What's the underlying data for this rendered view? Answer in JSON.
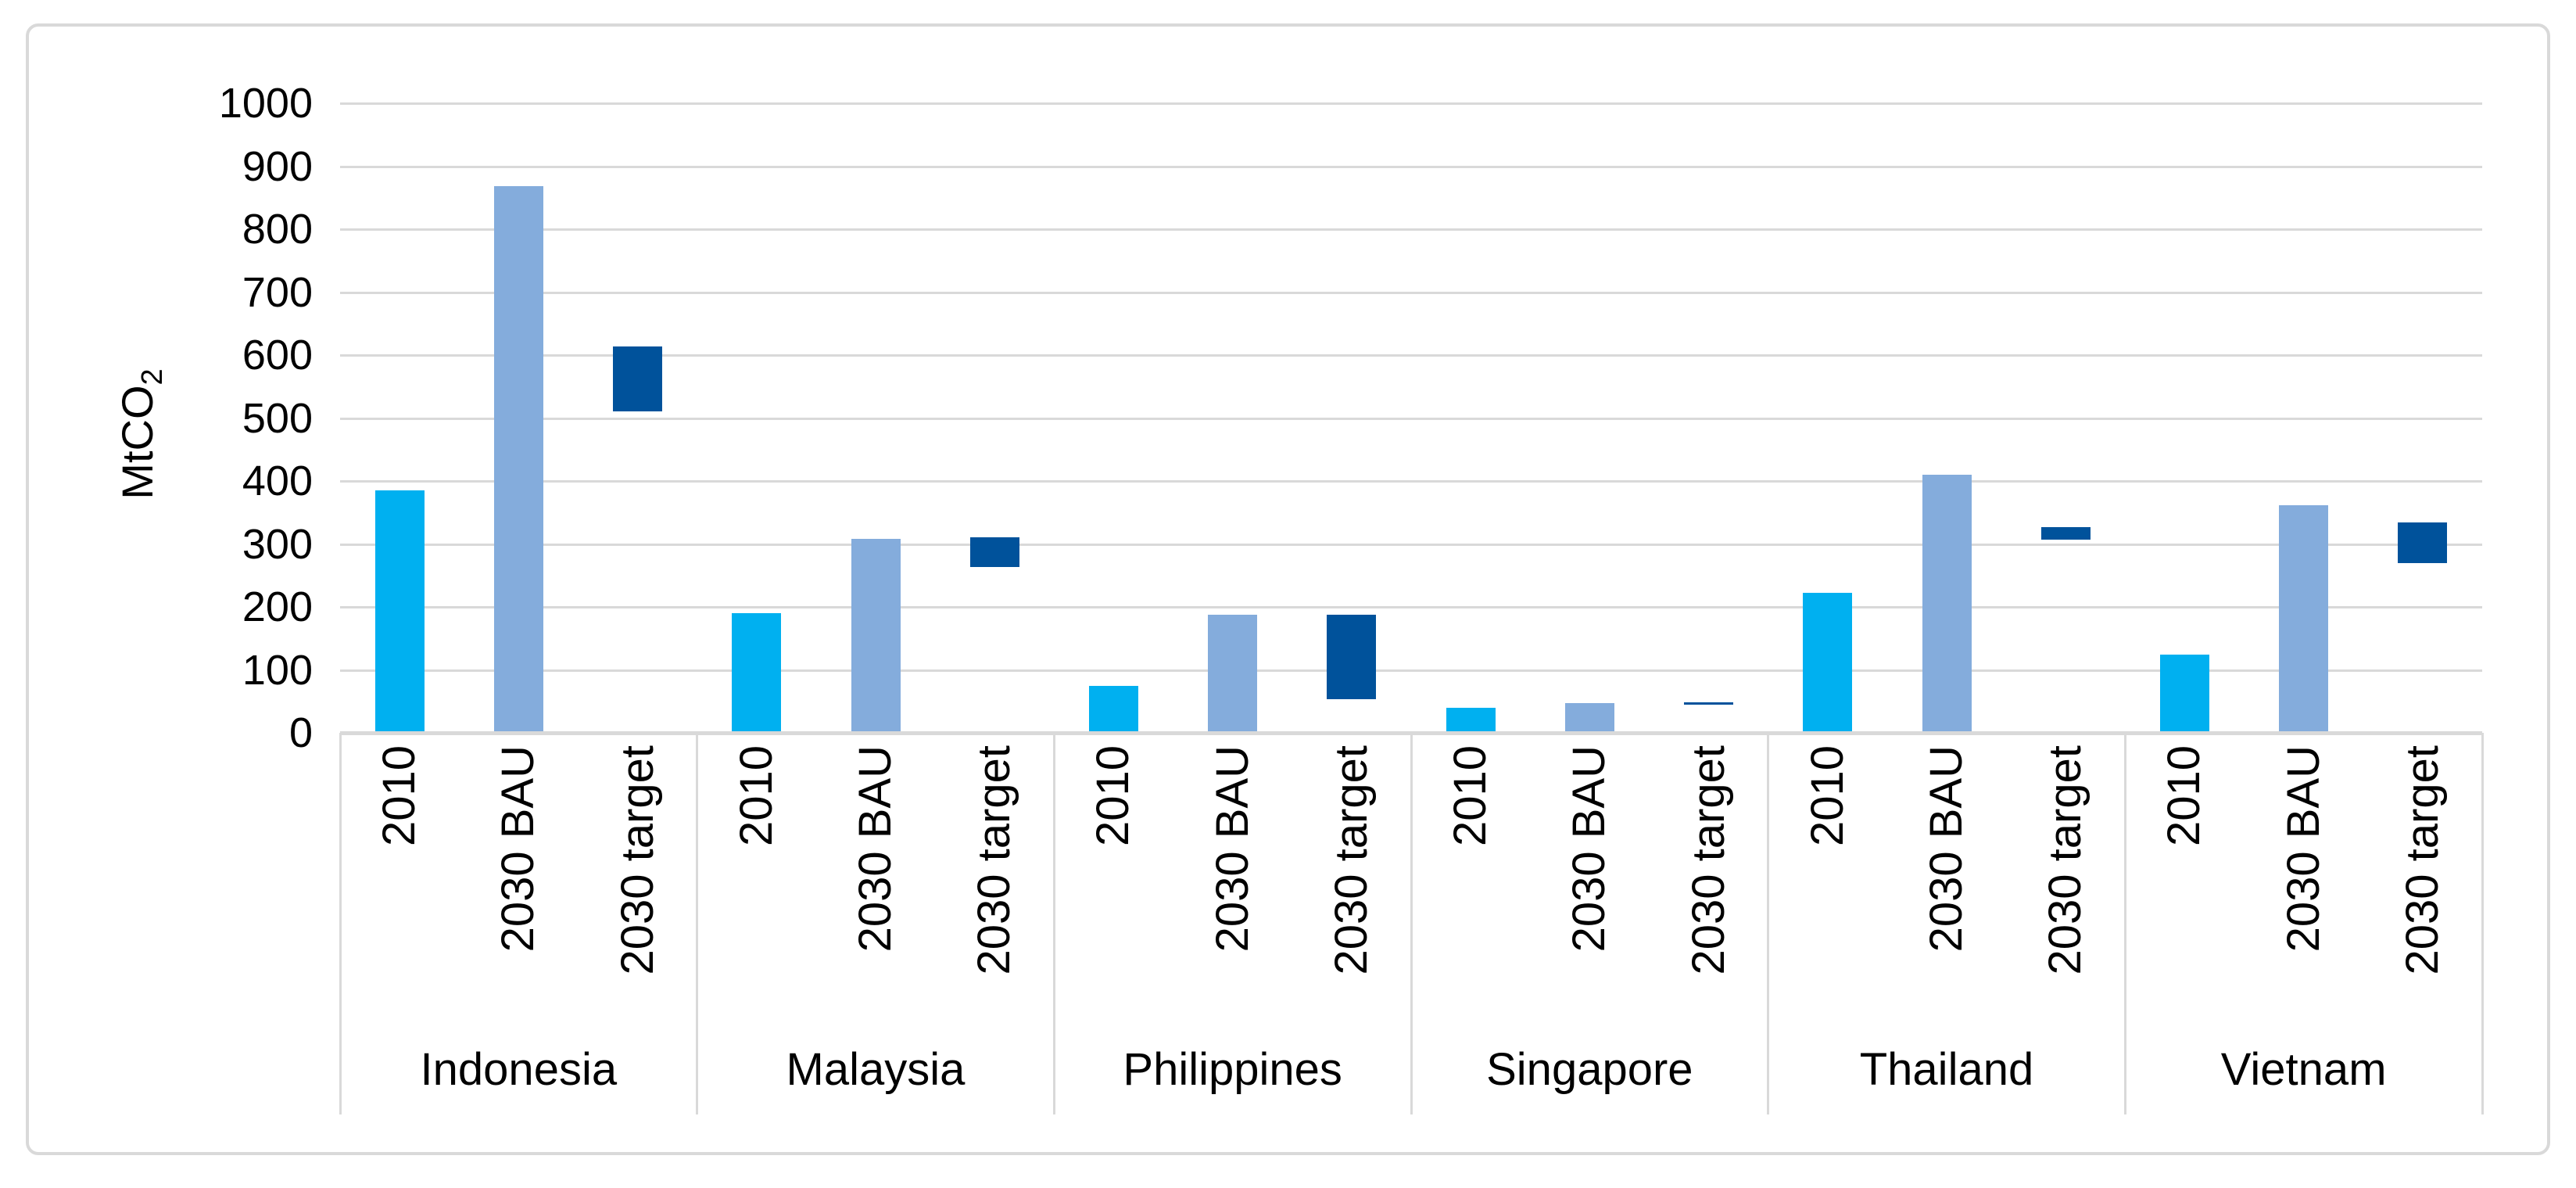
{
  "chart_data": {
    "type": "bar",
    "title": "",
    "ylabel": "MtCO2",
    "ylabel_main": "MtCO",
    "ylabel_sub": "2",
    "ylim": [
      0,
      1000
    ],
    "y_tick_step": 100,
    "y_ticks": [
      "0",
      "100",
      "200",
      "300",
      "400",
      "500",
      "600",
      "700",
      "800",
      "900",
      "1000"
    ],
    "grid": "horizontal",
    "legend": "none",
    "bar_labels": [
      "2010",
      "2030 BAU",
      "2030 target"
    ],
    "categories": [
      "Indonesia",
      "Malaysia",
      "Philippines",
      "Singapore",
      "Thailand",
      "Vietnam"
    ],
    "series": [
      {
        "name": "2010",
        "type": "column",
        "color": "#00B0F0",
        "values": [
          385,
          190,
          74,
          40,
          222,
          124
        ]
      },
      {
        "name": "2030 BAU",
        "type": "column",
        "color": "#84ACDC",
        "values": [
          868,
          308,
          188,
          47,
          410,
          362
        ]
      },
      {
        "name": "2030 target",
        "type": "floating-column",
        "color": "#00529B",
        "values_low": [
          510,
          263,
          53,
          45,
          307,
          270
        ],
        "values_high": [
          614,
          311,
          188,
          49,
          327,
          334
        ]
      }
    ],
    "colors": {
      "background": "#FFFFFF",
      "frame_border": "#D9D9D9",
      "gridline": "#D9D9D9",
      "axis_line": "#D9D9D9",
      "divider_line": "#D9D9D9",
      "text": "#000000"
    }
  }
}
